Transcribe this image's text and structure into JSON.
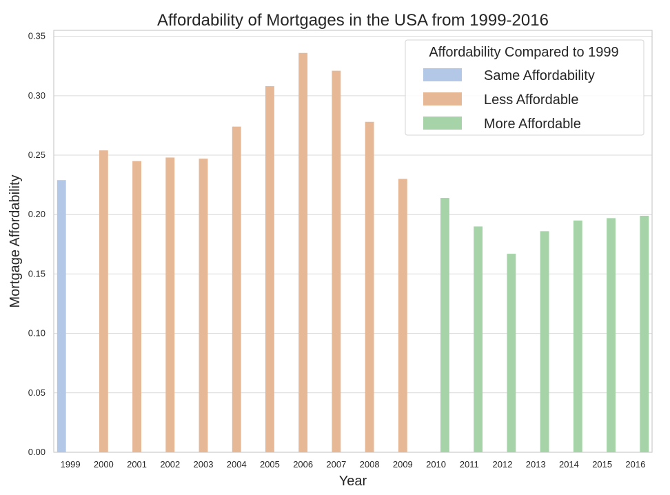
{
  "chart_data": {
    "type": "bar",
    "title": "Affordability of Mortgages in the USA from 1999-2016",
    "xlabel": "Year",
    "ylabel": "Mortgage Affordability",
    "ylim": [
      0,
      0.355
    ],
    "yticks": [
      "0.00",
      "0.05",
      "0.10",
      "0.15",
      "0.20",
      "0.25",
      "0.30",
      "0.35"
    ],
    "grid": true,
    "categories": [
      "1999",
      "2000",
      "2001",
      "2002",
      "2003",
      "2004",
      "2005",
      "2006",
      "2007",
      "2008",
      "2009",
      "2010",
      "2011",
      "2012",
      "2013",
      "2014",
      "2015",
      "2016"
    ],
    "legend": {
      "title": "Affordability Compared to 1999",
      "placement": "top-right"
    },
    "series": [
      {
        "name": "Same Affordability",
        "color": "#b3c8e6",
        "values": [
          0.229,
          null,
          null,
          null,
          null,
          null,
          null,
          null,
          null,
          null,
          null,
          null,
          null,
          null,
          null,
          null,
          null,
          null
        ]
      },
      {
        "name": "Less Affordable",
        "color": "#e6b896",
        "values": [
          null,
          0.254,
          0.245,
          0.248,
          0.247,
          0.274,
          0.308,
          0.336,
          0.321,
          0.278,
          0.23,
          null,
          null,
          null,
          null,
          null,
          null,
          null
        ]
      },
      {
        "name": "More Affordable",
        "color": "#a6d4a8",
        "values": [
          null,
          null,
          null,
          null,
          null,
          null,
          null,
          null,
          null,
          null,
          null,
          0.214,
          0.19,
          0.167,
          0.186,
          0.195,
          0.197,
          0.199
        ]
      }
    ]
  }
}
